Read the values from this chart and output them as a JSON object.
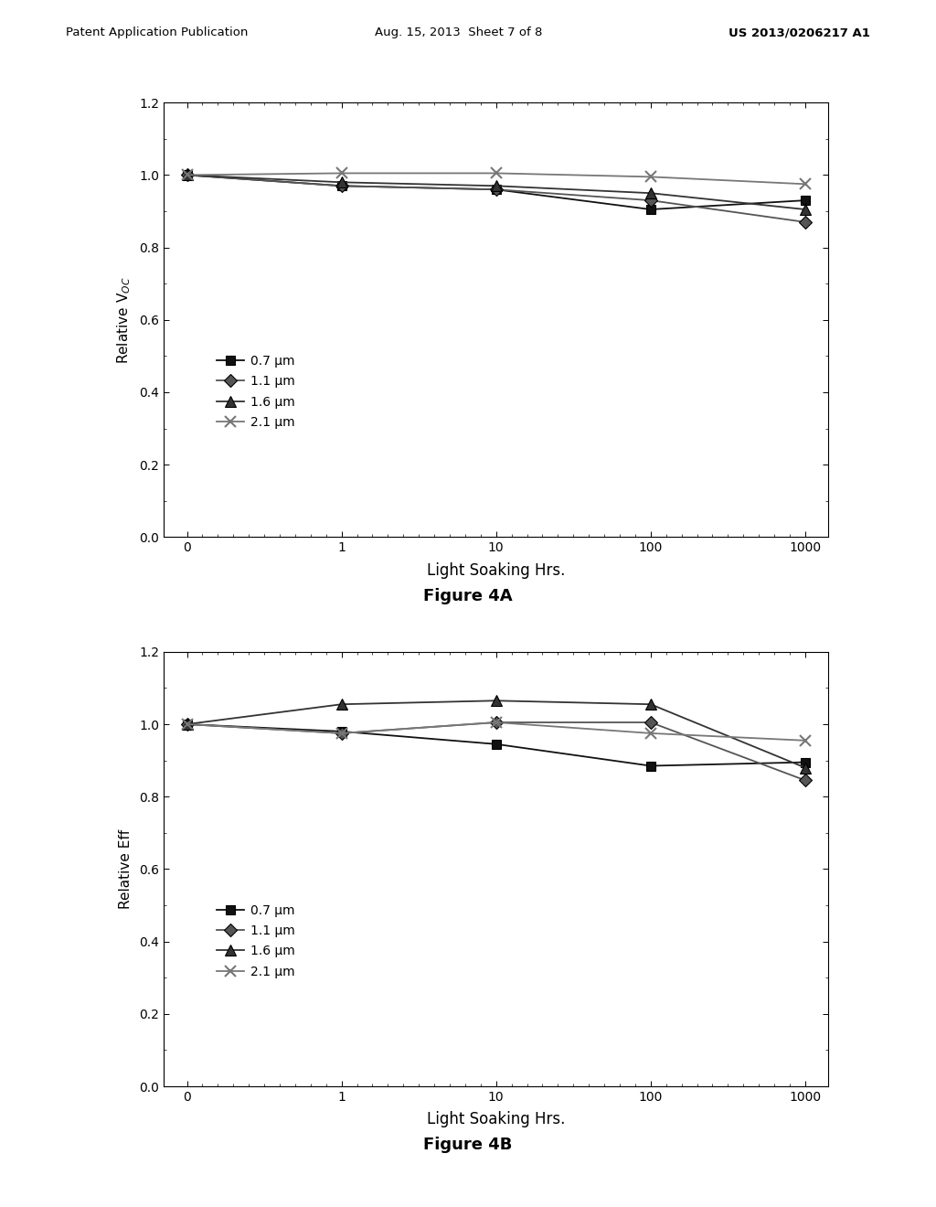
{
  "header_left": "Patent Application Publication",
  "header_mid": "Aug. 15, 2013  Sheet 7 of 8",
  "header_right": "US 2013/0206217 A1",
  "x_positions": [
    0,
    1,
    2,
    3,
    4
  ],
  "x_tick_labels": [
    "0",
    "1",
    "10",
    "100",
    "1000"
  ],
  "fig4A": {
    "ylabel": "Relative V$_{OC}$",
    "xlabel": "Light Soaking Hrs.",
    "ylim": [
      0.0,
      1.2
    ],
    "yticks": [
      0.0,
      0.2,
      0.4,
      0.6,
      0.8,
      1.0,
      1.2
    ],
    "caption": "Figure 4A",
    "series": [
      {
        "label": "0.7 μm",
        "marker": "s",
        "color": "#111111",
        "values": [
          1.0,
          0.97,
          0.96,
          0.905,
          0.93
        ]
      },
      {
        "label": "1.1 μm",
        "marker": "D",
        "color": "#555555",
        "values": [
          1.0,
          0.97,
          0.96,
          0.93,
          0.87
        ]
      },
      {
        "label": "1.6 μm",
        "marker": "^",
        "color": "#333333",
        "values": [
          1.0,
          0.98,
          0.97,
          0.95,
          0.905
        ]
      },
      {
        "label": "2.1 μm",
        "marker": "x",
        "color": "#777777",
        "values": [
          1.0,
          1.005,
          1.005,
          0.995,
          0.975
        ]
      }
    ]
  },
  "fig4B": {
    "ylabel": "Relative Eff",
    "xlabel": "Light Soaking Hrs.",
    "ylim": [
      0.0,
      1.2
    ],
    "yticks": [
      0.0,
      0.2,
      0.4,
      0.6,
      0.8,
      1.0,
      1.2
    ],
    "caption": "Figure 4B",
    "series": [
      {
        "label": "0.7 μm",
        "marker": "s",
        "color": "#111111",
        "values": [
          1.0,
          0.98,
          0.945,
          0.885,
          0.895
        ]
      },
      {
        "label": "1.1 μm",
        "marker": "D",
        "color": "#555555",
        "values": [
          1.0,
          0.975,
          1.005,
          1.005,
          0.845
        ]
      },
      {
        "label": "1.6 μm",
        "marker": "^",
        "color": "#333333",
        "values": [
          1.0,
          1.055,
          1.065,
          1.055,
          0.88
        ]
      },
      {
        "label": "2.1 μm",
        "marker": "x",
        "color": "#777777",
        "values": [
          1.0,
          0.975,
          1.005,
          0.975,
          0.955
        ]
      }
    ]
  }
}
